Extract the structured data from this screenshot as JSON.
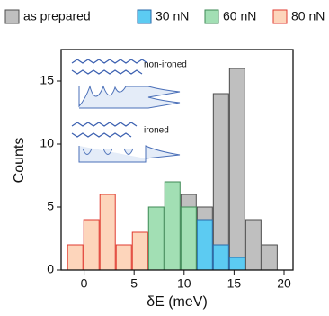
{
  "chart_data": {
    "type": "histogram",
    "x_label": "δE (meV)",
    "y_label": "Counts",
    "bins": [
      -1.7,
      -0.08,
      1.54,
      3.16,
      4.78,
      6.4,
      8.02,
      9.64,
      11.26,
      12.88,
      14.5,
      16.12,
      17.74,
      19.36
    ],
    "series": [
      {
        "name": "as prepared",
        "color": "#bfbfbf",
        "edge": "#4d4d4d",
        "values": [
          0,
          0,
          0,
          0,
          0,
          0,
          0,
          6,
          5,
          14,
          16,
          4,
          2
        ]
      },
      {
        "name": "30 nN",
        "color": "#5ccbf2",
        "edge": "#2a6aa8",
        "values": [
          0,
          0,
          0,
          0,
          0,
          0,
          0,
          0,
          4,
          2,
          1,
          0,
          0
        ]
      },
      {
        "name": "60 nN",
        "color": "#a2dfb4",
        "edge": "#3d8a55",
        "values": [
          0,
          0,
          0,
          0,
          0,
          5,
          7,
          5,
          0,
          0,
          0,
          0,
          0
        ]
      },
      {
        "name": "80 nN",
        "color": "#fdd5bb",
        "edge": "#e03a2f",
        "values": [
          2,
          4,
          6,
          2,
          3,
          0,
          0,
          0,
          0,
          0,
          0,
          0,
          0
        ]
      }
    ],
    "xlim": [
      -2.3,
      20.9
    ],
    "ylim": [
      0,
      17.5
    ],
    "xticks": [
      0,
      5,
      10,
      15,
      20
    ],
    "yticks": [
      0,
      5,
      10,
      15
    ],
    "annotations": [
      "non-ironed",
      "ironed"
    ]
  }
}
